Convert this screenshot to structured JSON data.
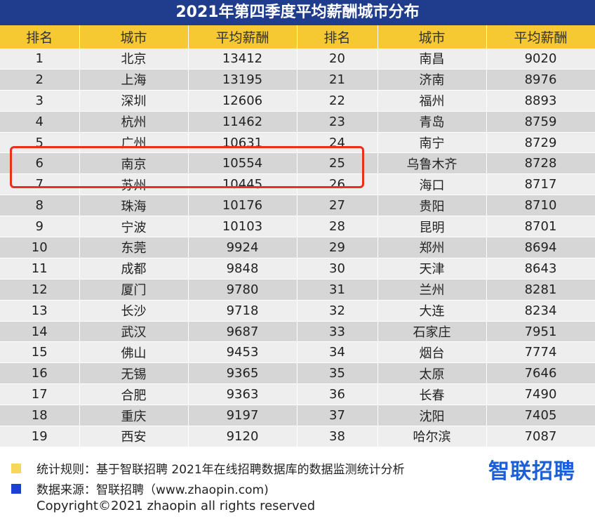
{
  "title": "2021年第四季度平均薪酬城市分布",
  "headers": [
    "排名",
    "城市",
    "平均薪酬",
    "排名",
    "城市",
    "平均薪酬"
  ],
  "rows": [
    [
      1,
      "北京",
      13412,
      20,
      "南昌",
      9020
    ],
    [
      2,
      "上海",
      13195,
      21,
      "济南",
      8976
    ],
    [
      3,
      "深圳",
      12606,
      22,
      "福州",
      8893
    ],
    [
      4,
      "杭州",
      11462,
      23,
      "青岛",
      8759
    ],
    [
      5,
      "广州",
      10631,
      24,
      "南宁",
      8729
    ],
    [
      6,
      "南京",
      10554,
      25,
      "乌鲁木齐",
      8728
    ],
    [
      7,
      "苏州",
      10445,
      26,
      "海口",
      8717
    ],
    [
      8,
      "珠海",
      10176,
      27,
      "贵阳",
      8710
    ],
    [
      9,
      "宁波",
      10103,
      28,
      "昆明",
      8701
    ],
    [
      10,
      "东莞",
      9924,
      29,
      "郑州",
      8694
    ],
    [
      11,
      "成都",
      9848,
      30,
      "天津",
      8643
    ],
    [
      12,
      "厦门",
      9780,
      31,
      "兰州",
      8281
    ],
    [
      13,
      "长沙",
      9718,
      32,
      "大连",
      8234
    ],
    [
      14,
      "武汉",
      9687,
      33,
      "石家庄",
      7951
    ],
    [
      15,
      "佛山",
      9453,
      34,
      "烟台",
      7774
    ],
    [
      16,
      "无锡",
      9365,
      35,
      "太原",
      7646
    ],
    [
      17,
      "合肥",
      9363,
      36,
      "长春",
      7490
    ],
    [
      18,
      "重庆",
      9197,
      37,
      "沈阳",
      7405
    ],
    [
      19,
      "西安",
      9120,
      38,
      "哈尔滨",
      7087
    ]
  ],
  "chart_data": {
    "type": "table",
    "title": "2021年第四季度平均薪酬城市分布",
    "columns": [
      "排名",
      "城市",
      "平均薪酬"
    ],
    "rows": [
      [
        1,
        "北京",
        13412
      ],
      [
        2,
        "上海",
        13195
      ],
      [
        3,
        "深圳",
        12606
      ],
      [
        4,
        "杭州",
        11462
      ],
      [
        5,
        "广州",
        10631
      ],
      [
        6,
        "南京",
        10554
      ],
      [
        7,
        "苏州",
        10445
      ],
      [
        8,
        "珠海",
        10176
      ],
      [
        9,
        "宁波",
        10103
      ],
      [
        10,
        "东莞",
        9924
      ],
      [
        11,
        "成都",
        9848
      ],
      [
        12,
        "厦门",
        9780
      ],
      [
        13,
        "长沙",
        9718
      ],
      [
        14,
        "武汉",
        9687
      ],
      [
        15,
        "佛山",
        9453
      ],
      [
        16,
        "无锡",
        9365
      ],
      [
        17,
        "合肥",
        9363
      ],
      [
        18,
        "重庆",
        9197
      ],
      [
        19,
        "西安",
        9120
      ],
      [
        20,
        "南昌",
        9020
      ],
      [
        21,
        "济南",
        8976
      ],
      [
        22,
        "福州",
        8893
      ],
      [
        23,
        "青岛",
        8759
      ],
      [
        24,
        "南宁",
        8729
      ],
      [
        25,
        "乌鲁木齐",
        8728
      ],
      [
        26,
        "海口",
        8717
      ],
      [
        27,
        "贵阳",
        8710
      ],
      [
        28,
        "昆明",
        8701
      ],
      [
        29,
        "郑州",
        8694
      ],
      [
        30,
        "天津",
        8643
      ],
      [
        31,
        "兰州",
        8281
      ],
      [
        32,
        "大连",
        8234
      ],
      [
        33,
        "石家庄",
        7951
      ],
      [
        34,
        "烟台",
        7774
      ],
      [
        35,
        "太原",
        7646
      ],
      [
        36,
        "长春",
        7490
      ],
      [
        37,
        "沈阳",
        7405
      ],
      [
        38,
        "哈尔滨",
        7087
      ]
    ]
  },
  "footer": {
    "rule_text": "统计规则：基于智联招聘 2021年在线招聘数据库的数据监测统计分析",
    "source_text": "数据来源：智联招聘（www.zhaopin.com)",
    "logo": "智联招聘",
    "copyright": "Copyright©2021 zhaopin all rights reserved"
  },
  "colors": {
    "title_bg": "#1f3d8c",
    "header_bg": "#f6c832",
    "row_light": "#eeeeee",
    "row_dark": "#d6d6d6",
    "highlight": "#e8301d",
    "legend_yellow": "#f6d75a",
    "legend_blue": "#1c3fd6",
    "logo": "#1c5fd6"
  }
}
